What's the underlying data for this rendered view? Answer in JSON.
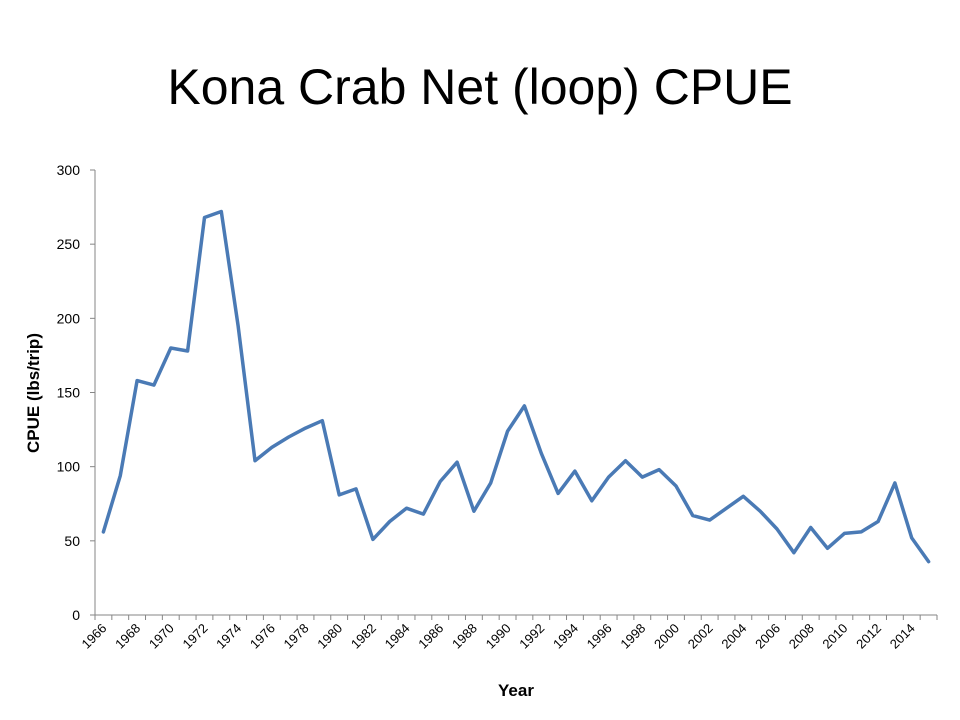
{
  "chart_data": {
    "type": "line",
    "title": "Kona Crab Net (loop) CPUE",
    "xlabel": "Year",
    "ylabel": "CPUE (lbs/trip)",
    "ylim": [
      0,
      300
    ],
    "yticks": [
      0,
      50,
      100,
      150,
      200,
      250,
      300
    ],
    "xticks": [
      "1966",
      "1968",
      "1970",
      "1972",
      "1974",
      "1976",
      "1978",
      "1980",
      "1982",
      "1984",
      "1986",
      "1988",
      "1990",
      "1992",
      "1994",
      "1996",
      "1998",
      "2000",
      "2002",
      "2004",
      "2006",
      "2008",
      "2010",
      "2012",
      "2014"
    ],
    "grid": false,
    "legend": "none",
    "series": [
      {
        "color": "#4a7ab5",
        "x": [
          1966,
          1967,
          1968,
          1969,
          1970,
          1971,
          1972,
          1973,
          1974,
          1975,
          1976,
          1977,
          1978,
          1979,
          1980,
          1981,
          1982,
          1983,
          1984,
          1985,
          1986,
          1987,
          1988,
          1989,
          1990,
          1991,
          1992,
          1993,
          1994,
          1995,
          1996,
          1997,
          1998,
          1999,
          2000,
          2001,
          2002,
          2003,
          2004,
          2005,
          2006,
          2007,
          2008,
          2009,
          2010,
          2011,
          2012,
          2013,
          2014,
          2015
        ],
        "values": [
          56,
          94,
          158,
          155,
          180,
          178,
          268,
          272,
          195,
          104,
          113,
          120,
          126,
          131,
          81,
          85,
          51,
          63,
          72,
          68,
          90,
          103,
          70,
          89,
          124,
          141,
          109,
          82,
          97,
          77,
          93,
          104,
          93,
          98,
          87,
          67,
          64,
          72,
          80,
          70,
          58,
          42,
          59,
          45,
          55,
          56,
          63,
          89,
          52,
          36
        ]
      }
    ]
  }
}
